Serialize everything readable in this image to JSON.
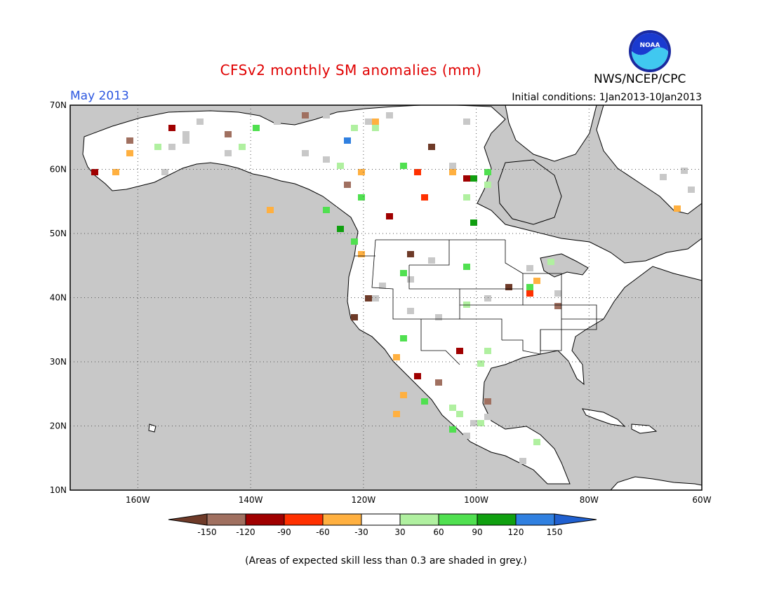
{
  "header": {
    "title": "CFSv2 monthly SM anomalies (mm)",
    "month_label": "May 2013",
    "initial_conditions": "Initial conditions: 1Jan2013-10Jan2013",
    "agency": "NWS/NCEP/CPC",
    "logo_text": "NOAA"
  },
  "map": {
    "lon_range": [
      -172,
      -60
    ],
    "lat_range": [
      10,
      70
    ],
    "lat_labels": [
      "70N",
      "60N",
      "50N",
      "40N",
      "30N",
      "20N",
      "10N"
    ],
    "lon_labels": [
      "160W",
      "140W",
      "120W",
      "100W",
      "80W",
      "60W"
    ],
    "grid": "dotted",
    "land_color": "#ffffff",
    "ocean_color": "#c8c8c8"
  },
  "legend": {
    "tick_labels": [
      "-150",
      "-120",
      "-90",
      "-60",
      "-30",
      "30",
      "60",
      "90",
      "120",
      "150"
    ],
    "colors": [
      "#6e3a28",
      "#a07060",
      "#a00000",
      "#ff3000",
      "#ffb040",
      "#ffffff",
      "#b0f0a0",
      "#50e050",
      "#10a010",
      "#3080e0",
      "#2060d0"
    ]
  },
  "footnote": "(Areas of expected skill less than 0.3 are shaded in grey.)"
}
